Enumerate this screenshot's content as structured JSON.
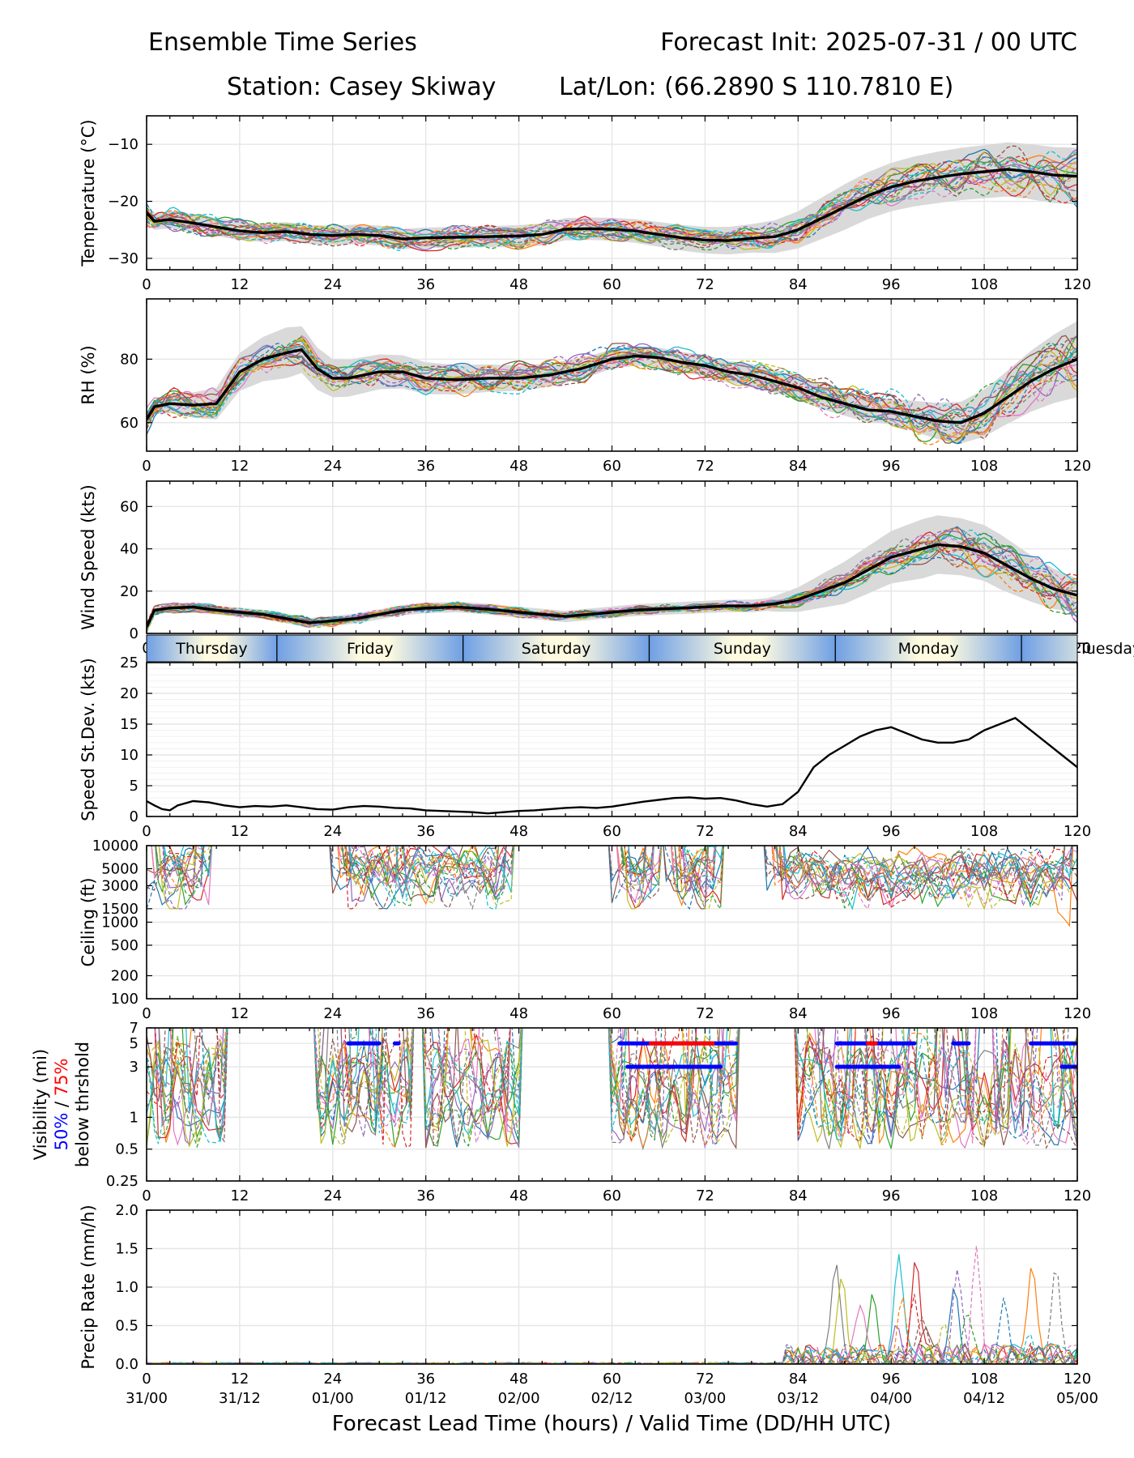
{
  "header": {
    "title_left": "Ensemble Time Series",
    "title_right": "Forecast Init: 2025-07-31 / 00 UTC",
    "station": "Station: Casey Skiway",
    "latlon": "Lat/Lon: (66.2890 S 110.7810 E)"
  },
  "xaxis": {
    "ticks": [
      0,
      12,
      24,
      36,
      48,
      60,
      72,
      84,
      96,
      108,
      120
    ],
    "valid_time_labels": [
      "31/00",
      "31/12",
      "01/00",
      "01/12",
      "02/00",
      "02/12",
      "03/00",
      "03/12",
      "04/00",
      "04/12",
      "05/00"
    ],
    "label": "Forecast Lead Time (hours) / Valid Time (DD/HH UTC)"
  },
  "day_band": {
    "days": [
      {
        "name": "Thursday",
        "start": 0,
        "end": 16.8
      },
      {
        "name": "Friday",
        "start": 16.8,
        "end": 40.8
      },
      {
        "name": "Saturday",
        "start": 40.8,
        "end": 64.8
      },
      {
        "name": "Sunday",
        "start": 64.8,
        "end": 88.8
      },
      {
        "name": "Monday",
        "start": 88.8,
        "end": 112.8
      },
      {
        "name": "Tuesday",
        "start": 112.8,
        "end": 136.8
      }
    ]
  },
  "colors": {
    "members": [
      "#1f77b4",
      "#ff7f0e",
      "#2ca02c",
      "#d62728",
      "#9467bd",
      "#8c564b",
      "#e377c2",
      "#7f7f7f",
      "#bcbd22",
      "#17becf"
    ],
    "mean": "#000000",
    "spread": "#d9d9d9",
    "grid": "#e6e6e6",
    "vis50": "#0000ff",
    "vis75": "#ff0000"
  },
  "chart_data": [
    {
      "id": "temperature",
      "type": "line",
      "ylabel": "Temperature (°C)",
      "ylim": [
        -32,
        -5
      ],
      "yticks": [
        -10,
        -20,
        -30
      ],
      "mean": {
        "x": [
          0,
          1,
          3,
          6,
          9,
          12,
          15,
          18,
          21,
          24,
          27,
          30,
          33,
          36,
          40,
          44,
          48,
          51,
          54,
          57,
          60,
          63,
          66,
          69,
          72,
          75,
          78,
          81,
          84,
          87,
          90,
          93,
          96,
          99,
          102,
          105,
          108,
          111,
          114,
          117,
          120
        ],
        "y": [
          -22,
          -23.5,
          -23.2,
          -23.8,
          -24.5,
          -25.2,
          -25.5,
          -25.3,
          -25.8,
          -26,
          -25.8,
          -26,
          -26.6,
          -26.4,
          -26.3,
          -26.2,
          -26.1,
          -25.8,
          -24.9,
          -24.8,
          -24.9,
          -25.2,
          -25.8,
          -26.4,
          -26.8,
          -26.9,
          -26.5,
          -26.2,
          -25,
          -23,
          -21,
          -19,
          -17.5,
          -16.5,
          -15.8,
          -15.2,
          -14.8,
          -14.4,
          -14.8,
          -15.4,
          -15.6
        ]
      },
      "spread_width": {
        "x": [
          0,
          60,
          78,
          90,
          102,
          120
        ],
        "w": [
          1.5,
          2,
          2.5,
          4,
          4.5,
          5
        ]
      },
      "member_amp": [
        2.2,
        2.5,
        5
      ],
      "grid": true
    },
    {
      "id": "rh",
      "type": "line",
      "ylabel": "RH (%)",
      "ylim": [
        51,
        99
      ],
      "yticks": [
        60,
        80
      ],
      "mean": {
        "x": [
          0,
          1,
          3,
          6,
          9,
          12,
          15,
          18,
          20,
          22,
          24,
          26,
          28,
          30,
          33,
          36,
          40,
          44,
          48,
          52,
          56,
          60,
          63,
          66,
          69,
          72,
          75,
          78,
          81,
          84,
          87,
          90,
          93,
          96,
          99,
          102,
          105,
          108,
          111,
          114,
          117,
          120
        ],
        "y": [
          61,
          65,
          66,
          65.5,
          66,
          76,
          80,
          82,
          83,
          77,
          74,
          74,
          75,
          76,
          76,
          74,
          73.5,
          74,
          74,
          75,
          77,
          80,
          81,
          80.5,
          79,
          78,
          76,
          75,
          73,
          71,
          68,
          66,
          64,
          63.5,
          62,
          60.5,
          60,
          63,
          68,
          73,
          77,
          80
        ]
      },
      "spread_width": {
        "x": [
          0,
          18,
          24,
          60,
          96,
          110,
          120
        ],
        "w": [
          2,
          8,
          6,
          3,
          4,
          8,
          12
        ]
      },
      "member_amp": [
        5,
        7,
        10
      ],
      "grid": true
    },
    {
      "id": "wind_speed",
      "type": "line",
      "ylabel": "Wind Speed (kts)",
      "ylim": [
        0,
        72
      ],
      "yticks": [
        0,
        20,
        40,
        60
      ],
      "mean": {
        "x": [
          0,
          1,
          3,
          6,
          9,
          12,
          15,
          18,
          21,
          24,
          27,
          30,
          33,
          36,
          40,
          44,
          48,
          51,
          54,
          57,
          60,
          63,
          66,
          69,
          72,
          75,
          78,
          81,
          84,
          87,
          90,
          93,
          96,
          99,
          102,
          105,
          108,
          111,
          114,
          117,
          120
        ],
        "y": [
          3,
          11,
          12,
          12.5,
          11,
          10,
          9,
          7,
          5,
          6,
          7,
          9,
          11,
          12,
          12.5,
          11.5,
          10,
          9,
          8,
          9,
          10,
          11,
          11.5,
          12,
          12.5,
          13,
          13,
          14,
          16,
          20,
          24,
          30,
          36,
          39,
          42,
          41,
          38,
          32,
          26,
          21,
          18
        ]
      },
      "spread_width": {
        "x": [
          0,
          80,
          90,
          100,
          110,
          120
        ],
        "w": [
          2,
          3,
          10,
          14,
          13,
          8
        ]
      },
      "member_amp": [
        2.5,
        3,
        14
      ],
      "grid": true
    },
    {
      "id": "speed_stdev",
      "type": "line",
      "ylabel": "Speed St.Dev. (kts)",
      "ylim": [
        0,
        25
      ],
      "yticks": [
        0,
        5,
        10,
        15,
        20,
        25
      ],
      "series": [
        {
          "x": [
            0,
            1,
            2,
            3,
            4,
            6,
            8,
            10,
            12,
            14,
            16,
            18,
            20,
            22,
            24,
            26,
            28,
            30,
            32,
            34,
            36,
            38,
            40,
            42,
            44,
            46,
            48,
            50,
            52,
            54,
            56,
            58,
            60,
            62,
            64,
            66,
            68,
            70,
            72,
            74,
            76,
            78,
            80,
            82,
            84,
            86,
            88,
            90,
            92,
            94,
            96,
            98,
            100,
            102,
            104,
            106,
            108,
            110,
            112,
            114,
            116,
            118,
            120
          ],
          "y": [
            2.5,
            1.8,
            1.2,
            1,
            1.8,
            2.5,
            2.3,
            1.8,
            1.5,
            1.7,
            1.6,
            1.8,
            1.5,
            1.2,
            1.1,
            1.5,
            1.7,
            1.6,
            1.4,
            1.3,
            1.0,
            0.9,
            0.8,
            0.7,
            0.5,
            0.7,
            0.9,
            1.0,
            1.2,
            1.4,
            1.5,
            1.4,
            1.6,
            2.0,
            2.4,
            2.7,
            3.0,
            3.1,
            2.9,
            3.0,
            2.6,
            2.0,
            1.6,
            2.0,
            4.0,
            8.0,
            10.0,
            11.5,
            13.0,
            14.0,
            14.5,
            13.5,
            12.5,
            12.0,
            12.0,
            12.5,
            14.0,
            15.0,
            16.0,
            14.0,
            12.0,
            10.0,
            8.0
          ]
        }
      ],
      "grid": true
    },
    {
      "id": "ceiling",
      "type": "line",
      "ylabel": "Ceiling (ft)",
      "scale": "log",
      "ylim": [
        100,
        10000
      ],
      "yticks": [
        100,
        200,
        500,
        1000,
        1500,
        3000,
        5000,
        10000
      ],
      "grid": true
    },
    {
      "id": "visibility",
      "type": "line",
      "ylabel_parts": [
        "Visibility (mi)",
        "50%",
        " / ",
        "75%",
        "below thrshold"
      ],
      "scale": "log",
      "ylim": [
        0.25,
        7
      ],
      "yticks": [
        0.25,
        0.5,
        1,
        3,
        5,
        7
      ],
      "threshold_bars": [
        {
          "level": 5,
          "color": "#0000ff",
          "segments": [
            [
              26,
              30
            ],
            [
              32,
              32.5
            ],
            [
              61,
              76
            ],
            [
              89,
              99
            ],
            [
              104,
              106
            ],
            [
              114,
              120
            ]
          ]
        },
        {
          "level": 5,
          "color": "#ff0000",
          "segments": [
            [
              65,
              73
            ],
            [
              93,
              94
            ]
          ]
        },
        {
          "level": 3,
          "color": "#0000ff",
          "segments": [
            [
              62,
              74
            ],
            [
              89,
              97
            ],
            [
              118,
              120
            ]
          ]
        }
      ],
      "grid": true
    },
    {
      "id": "precip_rate",
      "type": "line",
      "ylabel": "Precip Rate (mm/h)",
      "ylim": [
        0,
        2.0
      ],
      "yticks": [
        0.0,
        0.5,
        1.0,
        1.5,
        2.0
      ],
      "grid": true
    }
  ]
}
